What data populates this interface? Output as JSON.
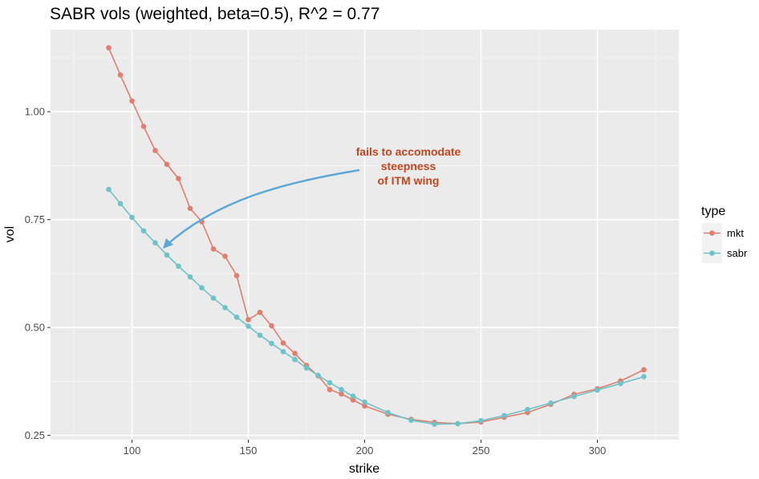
{
  "chart_data": {
    "type": "line",
    "title": "SABR vols (weighted, beta=0.5), R^2 = 0.77",
    "xlabel": "strike",
    "ylabel": "vol",
    "xlim": [
      65,
      335
    ],
    "ylim": [
      0.24,
      1.19
    ],
    "x_ticks": [
      100,
      150,
      200,
      250,
      300
    ],
    "x_tick_labels": [
      "100",
      "150",
      "200",
      "250",
      "300"
    ],
    "y_ticks": [
      0.25,
      0.5,
      0.75,
      1.0
    ],
    "y_tick_labels": [
      "0.25",
      "0.50",
      "0.75",
      "1.00"
    ],
    "grid": true,
    "legend": {
      "title": "type",
      "position": "right"
    },
    "series": [
      {
        "name": "mkt",
        "color": "#e07f6f",
        "x": [
          90,
          95,
          100,
          105,
          110,
          115,
          120,
          125,
          130,
          135,
          140,
          145,
          150,
          155,
          160,
          165,
          170,
          175,
          180,
          185,
          190,
          195,
          200,
          210,
          220,
          230,
          240,
          250,
          260,
          270,
          280,
          290,
          300,
          310,
          320
        ],
        "y": [
          1.148,
          1.085,
          1.025,
          0.966,
          0.91,
          0.878,
          0.845,
          0.776,
          0.745,
          0.682,
          0.665,
          0.62,
          0.518,
          0.535,
          0.504,
          0.464,
          0.44,
          0.412,
          0.388,
          0.356,
          0.346,
          0.332,
          0.318,
          0.299,
          0.287,
          0.28,
          0.277,
          0.281,
          0.292,
          0.303,
          0.322,
          0.345,
          0.358,
          0.376,
          0.402
        ]
      },
      {
        "name": "sabr",
        "color": "#6ec3c9",
        "x": [
          90,
          95,
          100,
          105,
          110,
          115,
          120,
          125,
          130,
          135,
          140,
          145,
          150,
          155,
          160,
          165,
          170,
          175,
          180,
          185,
          190,
          195,
          200,
          210,
          220,
          230,
          240,
          250,
          260,
          270,
          280,
          290,
          300,
          310,
          320
        ],
        "y": [
          0.82,
          0.787,
          0.755,
          0.724,
          0.696,
          0.668,
          0.642,
          0.617,
          0.592,
          0.568,
          0.546,
          0.524,
          0.503,
          0.482,
          0.463,
          0.444,
          0.426,
          0.406,
          0.389,
          0.372,
          0.356,
          0.341,
          0.327,
          0.303,
          0.285,
          0.276,
          0.277,
          0.284,
          0.296,
          0.31,
          0.325,
          0.34,
          0.355,
          0.37,
          0.386
        ]
      }
    ],
    "annotation": {
      "lines": [
        "fails to accomodate",
        "steepness",
        "of ITM wing"
      ],
      "text_color": "#c8441c",
      "arrow_color": "#5ba8d8"
    }
  }
}
